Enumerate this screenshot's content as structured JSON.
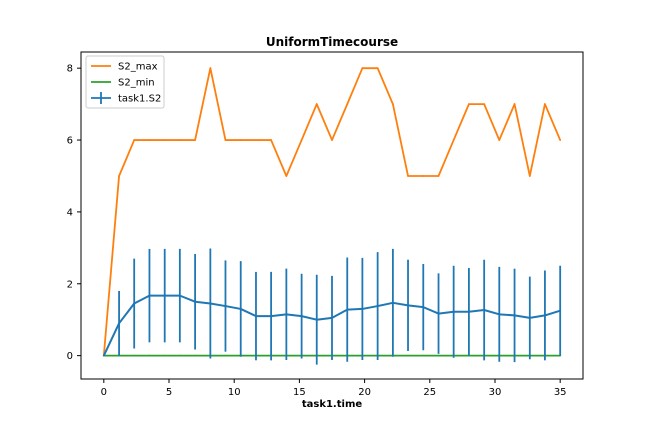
{
  "chart_data": {
    "type": "line",
    "title": "UniformTimecourse",
    "xlabel": "task1.time",
    "ylabel": "",
    "xlim": [
      -1.75,
      36.75
    ],
    "ylim": [
      -0.65,
      8.45
    ],
    "xticks": [
      0,
      5,
      10,
      15,
      20,
      25,
      30,
      35
    ],
    "yticks": [
      0,
      2,
      4,
      6,
      8
    ],
    "grid": false,
    "legend_position": "top-left",
    "x": [
      0,
      1.17,
      2.33,
      3.5,
      4.67,
      5.83,
      7.0,
      8.17,
      9.33,
      10.5,
      11.67,
      12.83,
      14.0,
      15.17,
      16.33,
      17.5,
      18.67,
      19.83,
      21.0,
      22.17,
      23.33,
      24.5,
      25.67,
      26.83,
      28.0,
      29.17,
      30.33,
      31.5,
      32.67,
      33.83,
      35.0
    ],
    "series": [
      {
        "name": "S2_max",
        "color": "#ff7f0e",
        "values": [
          0,
          5,
          6,
          6,
          6,
          6,
          6,
          8,
          6,
          6,
          6,
          6,
          5,
          6,
          7,
          6,
          7,
          8,
          8,
          7,
          5,
          5,
          5,
          6,
          7,
          7,
          6,
          7,
          5,
          7,
          6
        ]
      },
      {
        "name": "S2_min",
        "color": "#2ca02c",
        "values": [
          0,
          0,
          0,
          0,
          0,
          0,
          0,
          0,
          0,
          0,
          0,
          0,
          0,
          0,
          0,
          0,
          0,
          0,
          0,
          0,
          0,
          0,
          0,
          0,
          0,
          0,
          0,
          0,
          0,
          0,
          0
        ]
      },
      {
        "name": "task1.S2",
        "color": "#1f77b4",
        "errorbars": true,
        "values": [
          0,
          0.9,
          1.45,
          1.67,
          1.67,
          1.67,
          1.5,
          1.45,
          1.38,
          1.3,
          1.1,
          1.1,
          1.15,
          1.1,
          1.0,
          1.05,
          1.28,
          1.3,
          1.38,
          1.47,
          1.4,
          1.35,
          1.17,
          1.22,
          1.22,
          1.27,
          1.15,
          1.12,
          1.05,
          1.12,
          1.25
        ],
        "yerr": [
          0,
          0.9,
          1.25,
          1.3,
          1.3,
          1.3,
          1.33,
          1.53,
          1.27,
          1.33,
          1.23,
          1.23,
          1.27,
          1.18,
          1.25,
          1.17,
          1.45,
          1.42,
          1.5,
          1.5,
          1.27,
          1.2,
          1.12,
          1.28,
          1.22,
          1.4,
          1.32,
          1.3,
          1.15,
          1.25,
          1.25
        ]
      }
    ]
  }
}
